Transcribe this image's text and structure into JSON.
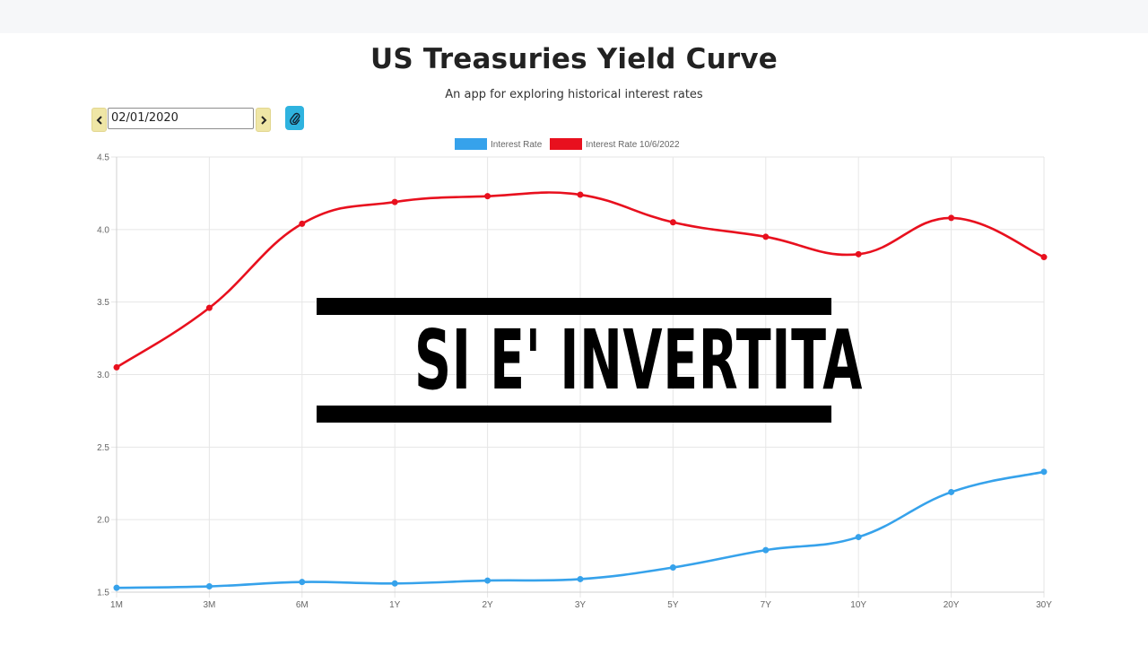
{
  "header": {
    "title": "US Treasuries Yield Curve",
    "subtitle": "An app for exploring historical interest rates"
  },
  "controls": {
    "date_value": "02/01/2020",
    "prev_icon": "chevron-left-icon",
    "next_icon": "chevron-right-icon",
    "link_icon": "paperclip-icon"
  },
  "colors": {
    "series_blue": "#36a2eb",
    "series_red": "#e8101e",
    "nav_button": "#efe6a6",
    "link_button": "#2fb3df"
  },
  "overlay": {
    "text": "SI E' INVERTITA"
  },
  "chart_data": {
    "type": "line",
    "title": "",
    "xlabel": "",
    "ylabel": "",
    "categories": [
      "1M",
      "3M",
      "6M",
      "1Y",
      "2Y",
      "3Y",
      "5Y",
      "7Y",
      "10Y",
      "20Y",
      "30Y"
    ],
    "ylim": [
      1.5,
      4.5
    ],
    "yticks": [
      "1.5",
      "2.0",
      "2.5",
      "3.0",
      "3.5",
      "4.0",
      "4.5"
    ],
    "grid": true,
    "legend_position": "top-center",
    "series": [
      {
        "name": "Interest Rate",
        "color": "#36a2eb",
        "values": [
          1.53,
          1.54,
          1.57,
          1.56,
          1.58,
          1.59,
          1.67,
          1.79,
          1.88,
          2.19,
          2.33
        ]
      },
      {
        "name": "Interest Rate 10/6/2022",
        "color": "#e8101e",
        "values": [
          3.05,
          3.46,
          4.04,
          4.19,
          4.23,
          4.24,
          4.05,
          3.95,
          3.83,
          4.08,
          3.81
        ]
      }
    ]
  }
}
